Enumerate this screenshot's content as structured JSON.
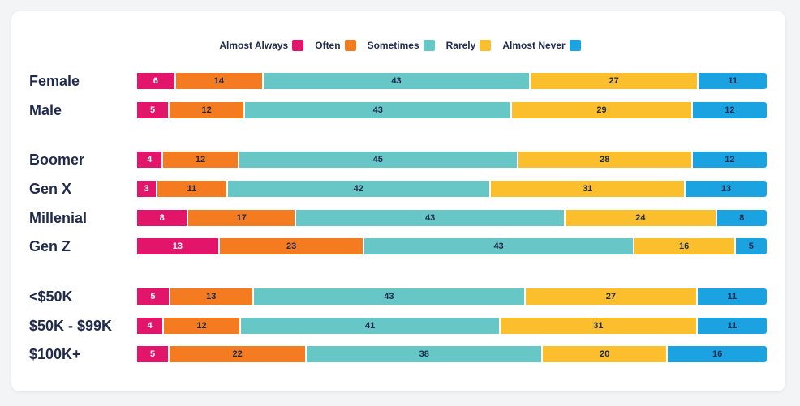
{
  "chart_data": {
    "type": "bar",
    "orientation": "horizontal",
    "stacked": true,
    "legend": [
      "Almost Always",
      "Often",
      "Sometimes",
      "Rarely",
      "Almost Never"
    ],
    "colors": [
      "#e2156b",
      "#f47b20",
      "#67c7c7",
      "#fbbf2d",
      "#1aa3e0"
    ],
    "groups": [
      {
        "rows": [
          {
            "label": "Female",
            "values": [
              6,
              14,
              43,
              27,
              11
            ]
          },
          {
            "label": "Male",
            "values": [
              5,
              12,
              43,
              29,
              12
            ]
          }
        ]
      },
      {
        "rows": [
          {
            "label": "Boomer",
            "values": [
              4,
              12,
              45,
              28,
              12
            ]
          },
          {
            "label": "Gen X",
            "values": [
              3,
              11,
              42,
              31,
              13
            ]
          },
          {
            "label": "Millenial",
            "values": [
              8,
              17,
              43,
              24,
              8
            ]
          },
          {
            "label": "Gen Z",
            "values": [
              13,
              23,
              43,
              16,
              5
            ]
          }
        ]
      },
      {
        "rows": [
          {
            "label": "<$50K",
            "values": [
              5,
              13,
              43,
              27,
              11
            ]
          },
          {
            "label": "$50K - $99K",
            "values": [
              4,
              12,
              41,
              31,
              11
            ]
          },
          {
            "label": "$100K+",
            "values": [
              5,
              22,
              38,
              20,
              16
            ]
          }
        ]
      }
    ]
  }
}
